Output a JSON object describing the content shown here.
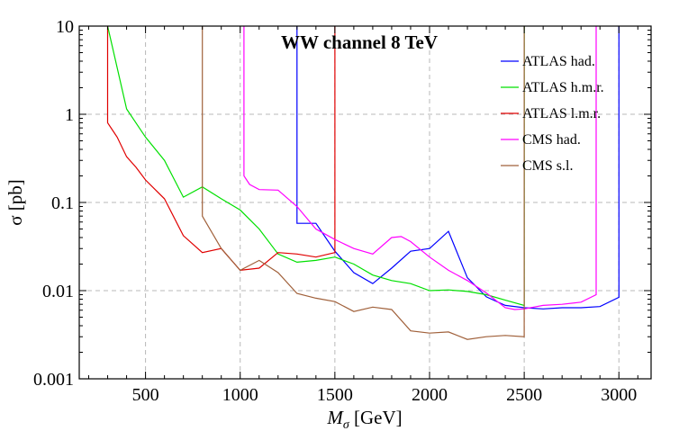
{
  "chart_data": {
    "type": "line",
    "title": "WW channel 8 TeV",
    "xlabel_main": "M",
    "xlabel_sub": "σ",
    "xlabel_unit": " [GeV]",
    "ylabel": "σ [pb]",
    "xlim": [
      150,
      3170
    ],
    "ylim": [
      0.001,
      10
    ],
    "yscale": "log",
    "grid": true,
    "legend_position": "top-right",
    "x_ticks": [
      500,
      1000,
      1500,
      2000,
      2500,
      3000
    ],
    "x_tick_labels": [
      "500",
      "1000",
      "1500",
      "2000",
      "2500",
      "3000"
    ],
    "y_ticks": [
      0.001,
      0.01,
      0.1,
      1,
      10
    ],
    "y_tick_labels": [
      "0.001",
      "0.01",
      "0.1",
      "1",
      "10"
    ],
    "series": [
      {
        "name": "ATLAS had.",
        "color": "#0000ff",
        "points": [
          [
            1300,
            10
          ],
          [
            1300,
            0.058
          ],
          [
            1400,
            0.058
          ],
          [
            1500,
            0.028
          ],
          [
            1600,
            0.016
          ],
          [
            1700,
            0.012
          ],
          [
            1800,
            0.018
          ],
          [
            1900,
            0.028
          ],
          [
            2000,
            0.03
          ],
          [
            2100,
            0.047
          ],
          [
            2200,
            0.014
          ],
          [
            2300,
            0.0085
          ],
          [
            2400,
            0.0068
          ],
          [
            2500,
            0.0064
          ],
          [
            2600,
            0.0062
          ],
          [
            2700,
            0.0064
          ],
          [
            2800,
            0.0064
          ],
          [
            2900,
            0.0066
          ],
          [
            3000,
            0.0084
          ],
          [
            3000,
            10
          ]
        ]
      },
      {
        "name": "ATLAS h.m.r.",
        "color": "#00e000",
        "points": [
          [
            300,
            10
          ],
          [
            400,
            1.15
          ],
          [
            500,
            0.55
          ],
          [
            600,
            0.3
          ],
          [
            700,
            0.115
          ],
          [
            800,
            0.15
          ],
          [
            900,
            0.11
          ],
          [
            1000,
            0.082
          ],
          [
            1100,
            0.05
          ],
          [
            1200,
            0.026
          ],
          [
            1300,
            0.021
          ],
          [
            1400,
            0.022
          ],
          [
            1500,
            0.024
          ],
          [
            1600,
            0.02
          ],
          [
            1700,
            0.015
          ],
          [
            1800,
            0.013
          ],
          [
            1900,
            0.012
          ],
          [
            2000,
            0.01
          ],
          [
            2100,
            0.0102
          ],
          [
            2200,
            0.0098
          ],
          [
            2300,
            0.009
          ],
          [
            2400,
            0.0078
          ],
          [
            2500,
            0.0068
          ],
          [
            2500,
            10
          ]
        ]
      },
      {
        "name": "ATLAS l.m.r.",
        "color": "#e00000",
        "points": [
          [
            300,
            10
          ],
          [
            300,
            0.8
          ],
          [
            350,
            0.55
          ],
          [
            400,
            0.33
          ],
          [
            450,
            0.25
          ],
          [
            500,
            0.18
          ],
          [
            600,
            0.11
          ],
          [
            700,
            0.042
          ],
          [
            800,
            0.027
          ],
          [
            900,
            0.03
          ],
          [
            1000,
            0.017
          ],
          [
            1100,
            0.018
          ],
          [
            1200,
            0.027
          ],
          [
            1300,
            0.026
          ],
          [
            1400,
            0.024
          ],
          [
            1500,
            0.027
          ],
          [
            1500,
            10
          ]
        ]
      },
      {
        "name": "CMS had.",
        "color": "#ff00ff",
        "points": [
          [
            1020,
            10
          ],
          [
            1020,
            0.2
          ],
          [
            1050,
            0.16
          ],
          [
            1100,
            0.14
          ],
          [
            1200,
            0.138
          ],
          [
            1300,
            0.09
          ],
          [
            1400,
            0.05
          ],
          [
            1500,
            0.038
          ],
          [
            1600,
            0.03
          ],
          [
            1700,
            0.026
          ],
          [
            1800,
            0.04
          ],
          [
            1850,
            0.041
          ],
          [
            1900,
            0.036
          ],
          [
            2000,
            0.024
          ],
          [
            2100,
            0.017
          ],
          [
            2200,
            0.013
          ],
          [
            2300,
            0.0094
          ],
          [
            2400,
            0.0064
          ],
          [
            2450,
            0.0061
          ],
          [
            2500,
            0.0062
          ],
          [
            2600,
            0.0068
          ],
          [
            2700,
            0.007
          ],
          [
            2800,
            0.0074
          ],
          [
            2880,
            0.009
          ],
          [
            2880,
            10
          ]
        ]
      },
      {
        "name": "CMS s.l.",
        "color": "#a0603a",
        "points": [
          [
            800,
            10
          ],
          [
            800,
            0.07
          ],
          [
            900,
            0.03
          ],
          [
            1000,
            0.017
          ],
          [
            1100,
            0.022
          ],
          [
            1200,
            0.016
          ],
          [
            1300,
            0.0093
          ],
          [
            1400,
            0.0082
          ],
          [
            1500,
            0.0075
          ],
          [
            1600,
            0.0058
          ],
          [
            1700,
            0.0065
          ],
          [
            1800,
            0.0061
          ],
          [
            1900,
            0.0035
          ],
          [
            2000,
            0.0033
          ],
          [
            2100,
            0.0034
          ],
          [
            2200,
            0.0028
          ],
          [
            2300,
            0.003
          ],
          [
            2400,
            0.0031
          ],
          [
            2500,
            0.003
          ],
          [
            2500,
            10
          ]
        ]
      }
    ]
  }
}
